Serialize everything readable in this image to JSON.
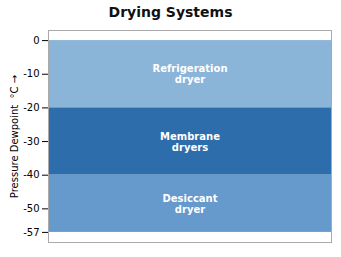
{
  "chart_data": {
    "type": "range",
    "title": "Drying Systems",
    "ylabel": "Pressure Dewpoint  °C",
    "categories": [
      "Refrigeration\ndryer",
      "Membrane\ndryers",
      "Desiccant\ndryer"
    ],
    "y_top": [
      0,
      -20,
      -40
    ],
    "y_bottom": [
      -20,
      -40,
      -57
    ],
    "colors": [
      "#8ab4d8",
      "#2d6dab",
      "#6699cc"
    ],
    "ylim": [
      -60,
      3
    ],
    "yticks": [
      0,
      -10,
      -20,
      -30,
      -40,
      -50,
      -57
    ],
    "tick_labels": "y"
  }
}
